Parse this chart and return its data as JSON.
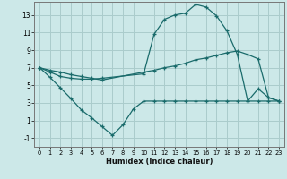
{
  "xlabel": "Humidex (Indice chaleur)",
  "bg_color": "#cce8e8",
  "grid_color": "#aacccc",
  "line_color": "#1a6b6b",
  "series1_x": [
    0,
    1,
    2,
    3,
    4,
    5,
    6,
    10,
    11,
    12,
    13,
    14,
    15,
    16,
    17,
    18,
    19,
    20,
    21,
    22,
    23
  ],
  "series1_y": [
    7.0,
    6.5,
    6.0,
    5.8,
    5.7,
    5.7,
    5.8,
    6.3,
    10.8,
    12.5,
    13.0,
    13.2,
    14.2,
    13.9,
    12.9,
    11.2,
    8.5,
    3.2,
    4.6,
    3.6,
    3.2
  ],
  "series2_x": [
    0,
    1,
    2,
    3,
    4,
    5,
    6,
    10,
    11,
    12,
    13,
    14,
    15,
    16,
    17,
    18,
    19,
    20,
    21,
    22,
    23
  ],
  "series2_y": [
    7.0,
    6.7,
    6.5,
    6.2,
    6.0,
    5.8,
    5.6,
    6.5,
    6.7,
    7.0,
    7.2,
    7.5,
    7.9,
    8.1,
    8.4,
    8.7,
    8.9,
    8.5,
    8.0,
    3.6,
    3.2
  ],
  "series3_x": [
    0,
    1,
    2,
    3,
    4,
    5,
    6,
    7,
    8,
    9,
    10,
    11,
    12,
    13,
    14,
    15,
    16,
    17,
    18,
    19,
    20,
    21,
    22,
    23
  ],
  "series3_y": [
    7.0,
    5.9,
    4.7,
    3.5,
    2.2,
    1.3,
    0.3,
    -0.7,
    0.5,
    2.3,
    3.2,
    3.2,
    3.2,
    3.2,
    3.2,
    3.2,
    3.2,
    3.2,
    3.2,
    3.2,
    3.2,
    3.2,
    3.2,
    3.2
  ],
  "xlim": [
    -0.5,
    23.5
  ],
  "ylim": [
    -2.0,
    14.5
  ],
  "yticks": [
    -1,
    1,
    3,
    5,
    7,
    9,
    11,
    13
  ],
  "xticks": [
    0,
    1,
    2,
    3,
    4,
    5,
    6,
    7,
    8,
    9,
    10,
    11,
    12,
    13,
    14,
    15,
    16,
    17,
    18,
    19,
    20,
    21,
    22,
    23
  ]
}
